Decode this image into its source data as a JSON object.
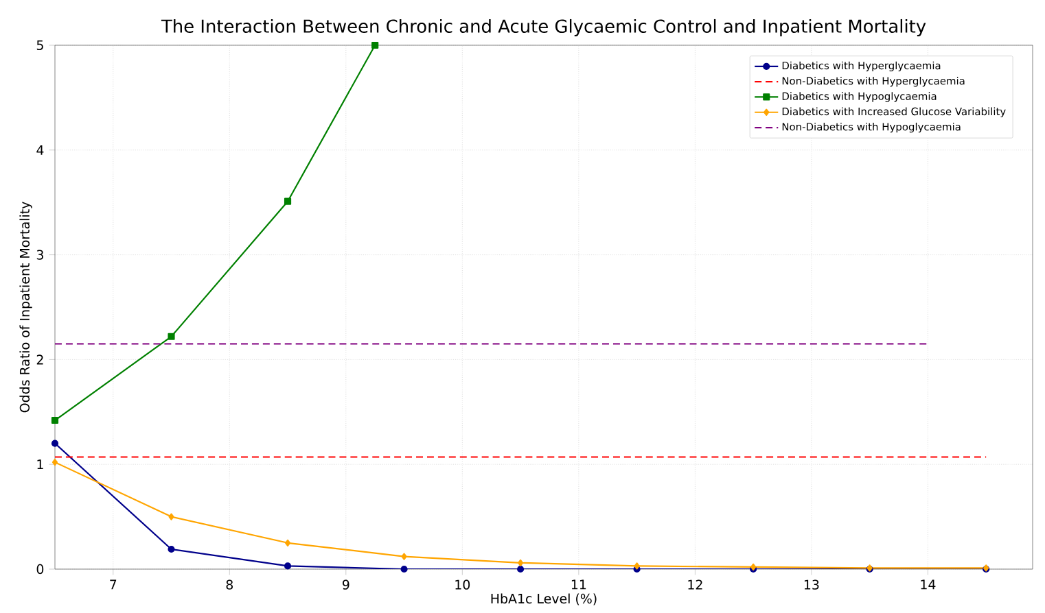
{
  "chart_data": {
    "type": "line",
    "title": "The Interaction Between Chronic and Acute Glycaemic Control and Inpatient Mortality",
    "xlabel": "HbA1c Level (%)",
    "ylabel": "Odds Ratio of Inpatient Mortality",
    "xlim": [
      6.5,
      14.9
    ],
    "ylim": [
      0,
      5
    ],
    "xticks": [
      7,
      8,
      9,
      10,
      11,
      12,
      13,
      14
    ],
    "yticks": [
      0,
      1,
      2,
      3,
      4,
      5
    ],
    "grid": true,
    "legend": "top right",
    "series": [
      {
        "name": "Diabetics with Hyperglycaemia",
        "color": "#00008b",
        "marker": "circle",
        "line_style": "solid",
        "x": [
          6.5,
          7.5,
          8.5,
          9.5,
          10.5,
          11.5,
          12.5,
          13.5,
          14.5
        ],
        "values": [
          1.2,
          0.19,
          0.03,
          0.0,
          0.0,
          0.0,
          0.0,
          0.0,
          0.0
        ]
      },
      {
        "name": "Non-Diabetics with Hyperglycaemia",
        "color": "#ff0000",
        "marker": "none",
        "line_style": "dashed",
        "x": [
          6.5,
          14.5
        ],
        "values": [
          1.07,
          1.07
        ]
      },
      {
        "name": "Diabetics with Hypoglycaemia",
        "color": "#008000",
        "marker": "square",
        "line_style": "solid",
        "x": [
          6.5,
          7.5,
          8.5,
          9.25
        ],
        "values": [
          1.42,
          2.22,
          3.51,
          5.0
        ]
      },
      {
        "name": "Diabetics with Increased Glucose Variability",
        "color": "#ffa500",
        "marker": "diamond",
        "line_style": "solid",
        "x": [
          6.5,
          7.5,
          8.5,
          9.5,
          10.5,
          11.5,
          12.5,
          13.5,
          14.5
        ],
        "values": [
          1.02,
          0.5,
          0.25,
          0.12,
          0.06,
          0.03,
          0.02,
          0.01,
          0.01
        ]
      },
      {
        "name": "Non-Diabetics with Hypoglycaemia",
        "color": "#800080",
        "marker": "none",
        "line_style": "dashed",
        "x": [
          6.5,
          14.0
        ],
        "values": [
          2.15,
          2.15
        ]
      }
    ]
  }
}
